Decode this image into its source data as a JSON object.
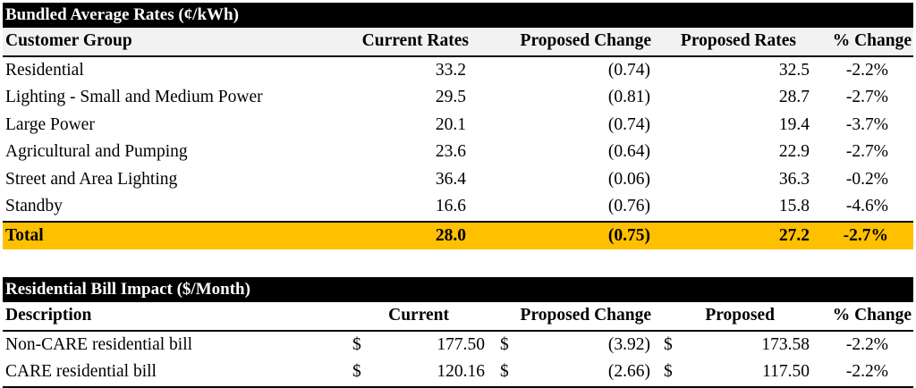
{
  "rates": {
    "title": "Bundled Average Rates (¢/kWh)",
    "headers": {
      "group": "Customer Group",
      "current": "Current Rates",
      "change": "Proposed Change",
      "proposed": "Proposed Rates",
      "pct": "% Change"
    },
    "rows": [
      {
        "group": "Residential",
        "current": "33.2",
        "change": "(0.74)",
        "proposed": "32.5",
        "pct": "-2.2%"
      },
      {
        "group": "Lighting - Small and Medium Power",
        "current": "29.5",
        "change": "(0.81)",
        "proposed": "28.7",
        "pct": "-2.7%"
      },
      {
        "group": "Large Power",
        "current": "20.1",
        "change": "(0.74)",
        "proposed": "19.4",
        "pct": "-3.7%"
      },
      {
        "group": "Agricultural and Pumping",
        "current": "23.6",
        "change": "(0.64)",
        "proposed": "22.9",
        "pct": "-2.7%"
      },
      {
        "group": "Street and Area Lighting",
        "current": "36.4",
        "change": "(0.06)",
        "proposed": "36.3",
        "pct": "-0.2%"
      },
      {
        "group": "Standby",
        "current": "16.6",
        "change": "(0.76)",
        "proposed": "15.8",
        "pct": "-4.6%"
      }
    ],
    "total": {
      "group": "Total",
      "current": "28.0",
      "change": "(0.75)",
      "proposed": "27.2",
      "pct": "-2.7%"
    }
  },
  "bill": {
    "title": "Residential Bill Impact ($/Month)",
    "headers": {
      "description": "Description",
      "current": "Current",
      "change": "Proposed Change",
      "proposed": "Proposed",
      "pct": "% Change"
    },
    "currency_symbol": "$",
    "rows": [
      {
        "description": "Non-CARE residential bill",
        "current": "177.50",
        "change": "(3.92)",
        "proposed": "173.58",
        "pct": "-2.2%"
      },
      {
        "description": "CARE residential bill",
        "current": "120.16",
        "change": "(2.66)",
        "proposed": "117.50",
        "pct": "-2.2%"
      }
    ]
  },
  "colors": {
    "title_bar": "#000000",
    "header_row": "#f2f2f2",
    "total_highlight": "#ffc000"
  }
}
